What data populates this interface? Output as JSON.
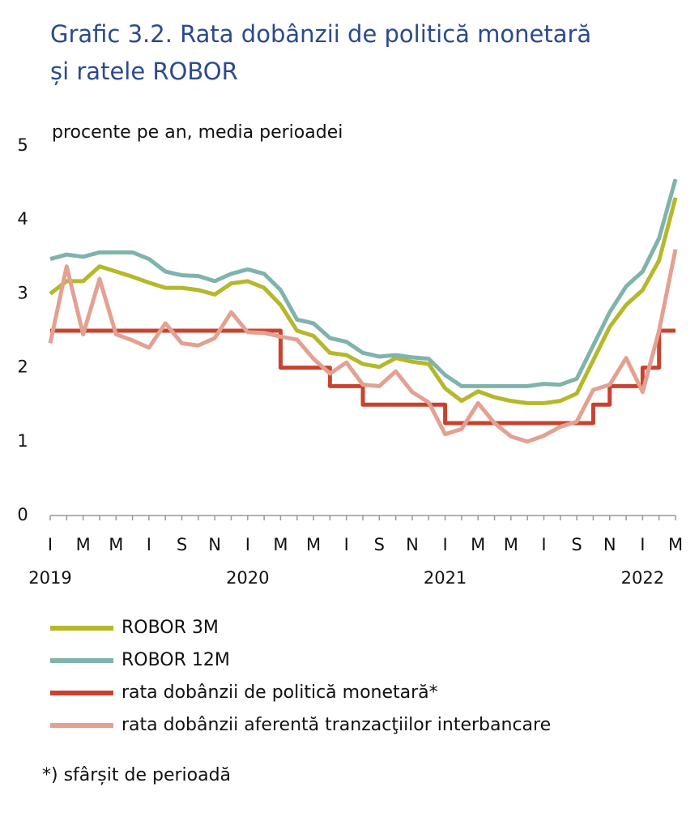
{
  "chart_data": {
    "type": "line",
    "title": "Grafic 3.2. Rata dobânzii de politică monetară",
    "title_line2": "și ratele ROBOR",
    "subtitle": "procente pe an, media perioadei",
    "categories": [
      "I",
      null,
      "M",
      null,
      "M",
      null,
      "I",
      null,
      "S",
      null,
      "N",
      null,
      "I",
      null,
      "M",
      null,
      "M",
      null,
      "I",
      null,
      "S",
      null,
      "N",
      null,
      "I",
      null,
      "M",
      null,
      "M",
      null,
      "I",
      null,
      "S",
      null,
      "N",
      null,
      "I",
      null,
      "M"
    ],
    "x_groups": [
      {
        "label": "2019",
        "start": 0
      },
      {
        "label": "2020",
        "start": 12
      },
      {
        "label": "2021",
        "start": 24
      },
      {
        "label": "2022",
        "start": 36
      }
    ],
    "ylim": [
      0,
      5
    ],
    "yticks": [
      0,
      1,
      2,
      3,
      4,
      5
    ],
    "grid": false,
    "series": [
      {
        "name": "ROBOR 3M",
        "color": "#b5b82a",
        "values": [
          3.0,
          3.17,
          3.17,
          3.37,
          3.3,
          3.23,
          3.15,
          3.08,
          3.08,
          3.05,
          2.99,
          3.14,
          3.17,
          3.08,
          2.85,
          2.5,
          2.43,
          2.2,
          2.17,
          2.05,
          2.01,
          2.13,
          2.08,
          2.05,
          1.72,
          1.55,
          1.68,
          1.6,
          1.55,
          1.52,
          1.52,
          1.55,
          1.65,
          2.1,
          2.55,
          2.85,
          3.05,
          3.45,
          4.3
        ]
      },
      {
        "name": "ROBOR 12M",
        "color": "#7fb3ac",
        "values": [
          3.47,
          3.53,
          3.5,
          3.56,
          3.56,
          3.56,
          3.47,
          3.3,
          3.25,
          3.24,
          3.17,
          3.27,
          3.33,
          3.27,
          3.05,
          2.65,
          2.6,
          2.4,
          2.35,
          2.2,
          2.15,
          2.17,
          2.14,
          2.12,
          1.9,
          1.75,
          1.75,
          1.75,
          1.75,
          1.75,
          1.78,
          1.77,
          1.85,
          2.3,
          2.75,
          3.1,
          3.3,
          3.75,
          4.55
        ]
      },
      {
        "name": "rata dobânzii de politică monetară*",
        "color": "#c8432f",
        "step": true,
        "values": [
          2.5,
          2.5,
          2.5,
          2.5,
          2.5,
          2.5,
          2.5,
          2.5,
          2.5,
          2.5,
          2.5,
          2.5,
          2.5,
          2.5,
          2.0,
          2.0,
          2.0,
          1.75,
          1.75,
          1.5,
          1.5,
          1.5,
          1.5,
          1.5,
          1.25,
          1.25,
          1.25,
          1.25,
          1.25,
          1.25,
          1.25,
          1.25,
          1.25,
          1.5,
          1.75,
          1.75,
          2.0,
          2.5,
          2.5
        ]
      },
      {
        "name": "rata dobânzii aferentă tranzacţiilor interbancare",
        "color": "#e3a192",
        "values": [
          2.33,
          3.37,
          2.45,
          3.2,
          2.45,
          2.37,
          2.27,
          2.6,
          2.33,
          2.3,
          2.4,
          2.75,
          2.48,
          2.47,
          2.42,
          2.38,
          2.12,
          1.92,
          2.07,
          1.77,
          1.75,
          1.95,
          1.67,
          1.53,
          1.1,
          1.17,
          1.52,
          1.25,
          1.07,
          1.0,
          1.08,
          1.2,
          1.27,
          1.7,
          1.77,
          2.13,
          1.67,
          2.5,
          3.6
        ]
      }
    ],
    "footnote": "*) sfârșit de perioadă"
  }
}
